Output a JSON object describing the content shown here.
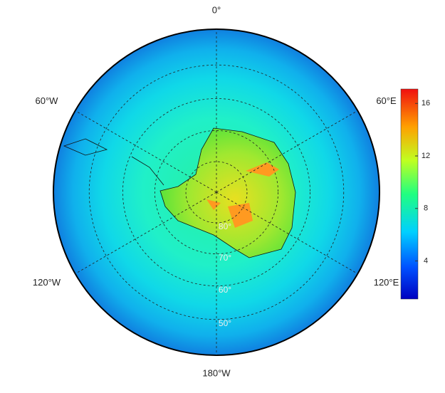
{
  "map": {
    "projection": "south-polar-stereographic",
    "boundary_latitude": 40,
    "meridians": [
      {
        "value": 0,
        "label": "0°"
      },
      {
        "value": 60,
        "label": "60°E"
      },
      {
        "value": 120,
        "label": "120°E"
      },
      {
        "value": 180,
        "label": "180°W"
      },
      {
        "value": -120,
        "label": "120°W"
      },
      {
        "value": -60,
        "label": "60°W"
      }
    ],
    "parallels": [
      {
        "value": 50,
        "label": "50°"
      },
      {
        "value": 60,
        "label": "60°"
      },
      {
        "value": 70,
        "label": "70°"
      },
      {
        "value": 80,
        "label": "80°"
      }
    ]
  },
  "colorbar": {
    "colormap": "jet",
    "range": [
      1.1,
      17.1
    ],
    "ticks": [
      4,
      8,
      12,
      16
    ]
  }
}
